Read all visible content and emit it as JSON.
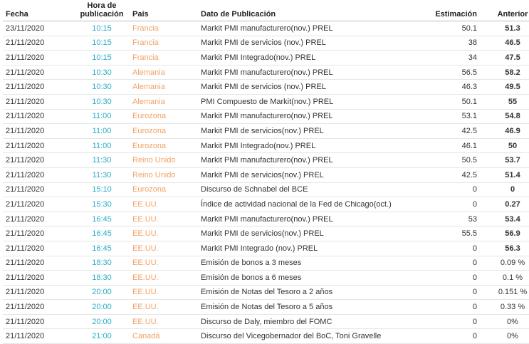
{
  "table": {
    "header": [
      "Fecha",
      "Hora de publicación",
      "País",
      "Dato de Publicación",
      "Estimación",
      "Anterior"
    ],
    "rows": [
      [
        "23/11/2020",
        "10:15",
        "Francia",
        "Markit PMI manufacturero(nov.) PREL",
        "50.1",
        "51.3"
      ],
      [
        "21/11/2020",
        "10:15",
        "Francia",
        "Markit PMI de servicios (nov.) PREL",
        "38",
        "46.5"
      ],
      [
        "21/11/2020",
        "10:15",
        "Francia",
        "Markit PMI Integrado(nov.) PREL",
        "34",
        "47.5"
      ],
      [
        "21/11/2020",
        "10:30",
        "Alemania",
        "Markit PMI manufacturero(nov.) PREL",
        "56.5",
        "58.2"
      ],
      [
        "21/11/2020",
        "10:30",
        "Alemania",
        "Markit PMI de servicios (nov.) PREL",
        "46.3",
        "49.5"
      ],
      [
        "21/11/2020",
        "10:30",
        "Alemania",
        "PMI Compuesto de Markit(nov.) PREL",
        "50.1",
        "55"
      ],
      [
        "21/11/2020",
        "11:00",
        "Eurozona",
        "Markit PMI manufacturero(nov.) PREL",
        "53.1",
        "54.8"
      ],
      [
        "21/11/2020",
        "11:00",
        "Eurozona",
        "Markit PMI de servicios(nov.) PREL",
        "42.5",
        "46.9"
      ],
      [
        "21/11/2020",
        "11:00",
        "Eurozona",
        "Markit PMI Integrado(nov.) PREL",
        "46.1",
        "50"
      ],
      [
        "21/11/2020",
        "11:30",
        "Reino Unido",
        "Markit PMI manufacturero(nov.) PREL",
        "50.5",
        "53.7"
      ],
      [
        "21/11/2020",
        "11:30",
        "Reino Unido",
        "Markit PMI de servicios(nov.) PREL",
        "42.5",
        "51.4"
      ],
      [
        "21/11/2020",
        "15:10",
        "Eurozona",
        "Discurso de Schnabel del BCE",
        "0",
        "0"
      ],
      [
        "21/11/2020",
        "15:30",
        "EE.UU.",
        "Índice de actividad nacional de la Fed de Chicago(oct.)",
        "0",
        "0.27"
      ],
      [
        "21/11/2020",
        "16:45",
        "EE.UU.",
        "Markit PMI manufacturero(nov.) PREL",
        "53",
        "53.4"
      ],
      [
        "21/11/2020",
        "16:45",
        "EE.UU.",
        "Markit PMI de servicios(nov.) PREL",
        "55.5",
        "56.9"
      ],
      [
        "21/11/2020",
        "16:45",
        "EE.UU.",
        "Markit PMI Integrado (nov.) PREL",
        "0",
        "56.3"
      ],
      [
        "21/11/2020",
        "18:30",
        "EE.UU.",
        "Emisión de bonos a 3 meses",
        "0",
        "0.09 %"
      ],
      [
        "21/11/2020",
        "18:30",
        "EE.UU.",
        "Emisión de bonos a 6 meses",
        "0",
        "0.1 %"
      ],
      [
        "21/11/2020",
        "20:00",
        "EE.UU.",
        "Emisión de Notas del Tesoro a 2 años",
        "0",
        "0.151 %"
      ],
      [
        "21/11/2020",
        "20:00",
        "EE.UU.",
        "Emisión de Notas del Tesoro a 5 años",
        "0",
        "0.33 %"
      ],
      [
        "21/11/2020",
        "20:00",
        "EE.UU.",
        "Discurso de Daly, miembro del FOMC",
        "0",
        "0%"
      ],
      [
        "21/11/2020",
        "21:00",
        "Canadá",
        "Discurso del Vicegobernador del BoC, Toni Gravelle",
        "0",
        "0%"
      ]
    ]
  }
}
